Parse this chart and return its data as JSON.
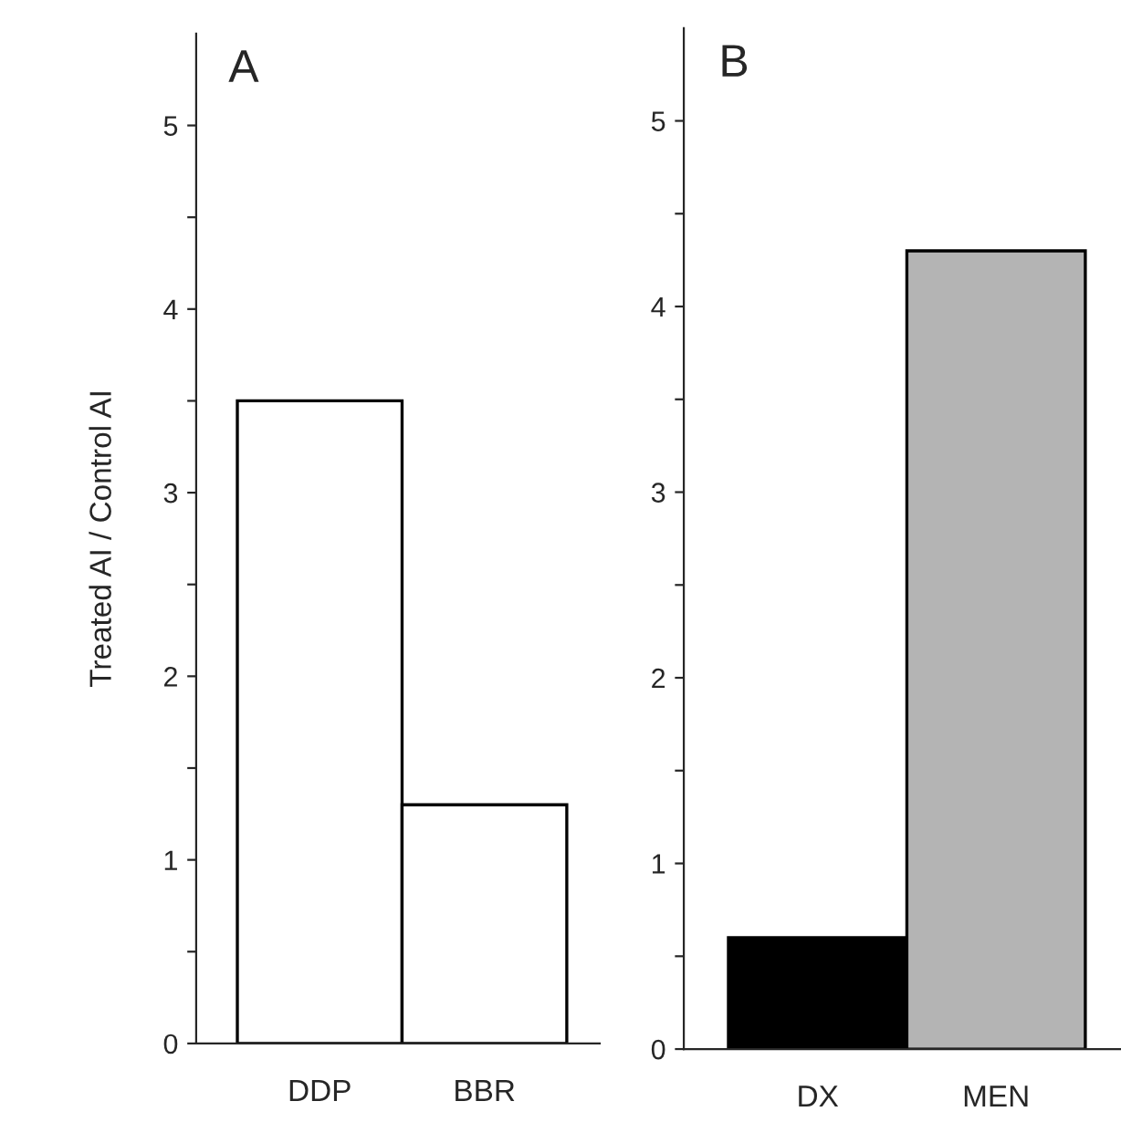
{
  "chart_data": [
    {
      "type": "bar",
      "title": "A",
      "ylabel": "Treated AI / Control AI",
      "categories": [
        "DDP",
        "BBR"
      ],
      "values": [
        3.5,
        1.3
      ],
      "colors": [
        "#ffffff",
        "#ffffff"
      ],
      "ylim": [
        0,
        5.5
      ],
      "yticks": [
        0,
        {
          "value": 0.5,
          "label": null
        },
        1,
        {
          "value": 1.5,
          "label": null
        },
        2,
        {
          "value": 2.5,
          "label": null
        },
        3,
        {
          "value": 3.5,
          "label": null
        },
        4,
        {
          "value": 4.5,
          "label": null
        },
        5
      ],
      "grid": false,
      "legend": false
    },
    {
      "type": "bar",
      "title": "B",
      "categories": [
        "DX",
        "MEN"
      ],
      "values": [
        0.6,
        4.3
      ],
      "colors": [
        "#000000",
        "#b4b4b4"
      ],
      "ylim": [
        0,
        5.5
      ],
      "yticks": [
        0,
        {
          "value": 0.5,
          "label": null
        },
        1,
        {
          "value": 1.5,
          "label": null
        },
        2,
        {
          "value": 2.5,
          "label": null
        },
        3,
        {
          "value": 3.5,
          "label": null
        },
        4,
        {
          "value": 4.5,
          "label": null
        },
        5
      ],
      "grid": false,
      "legend": false
    }
  ]
}
